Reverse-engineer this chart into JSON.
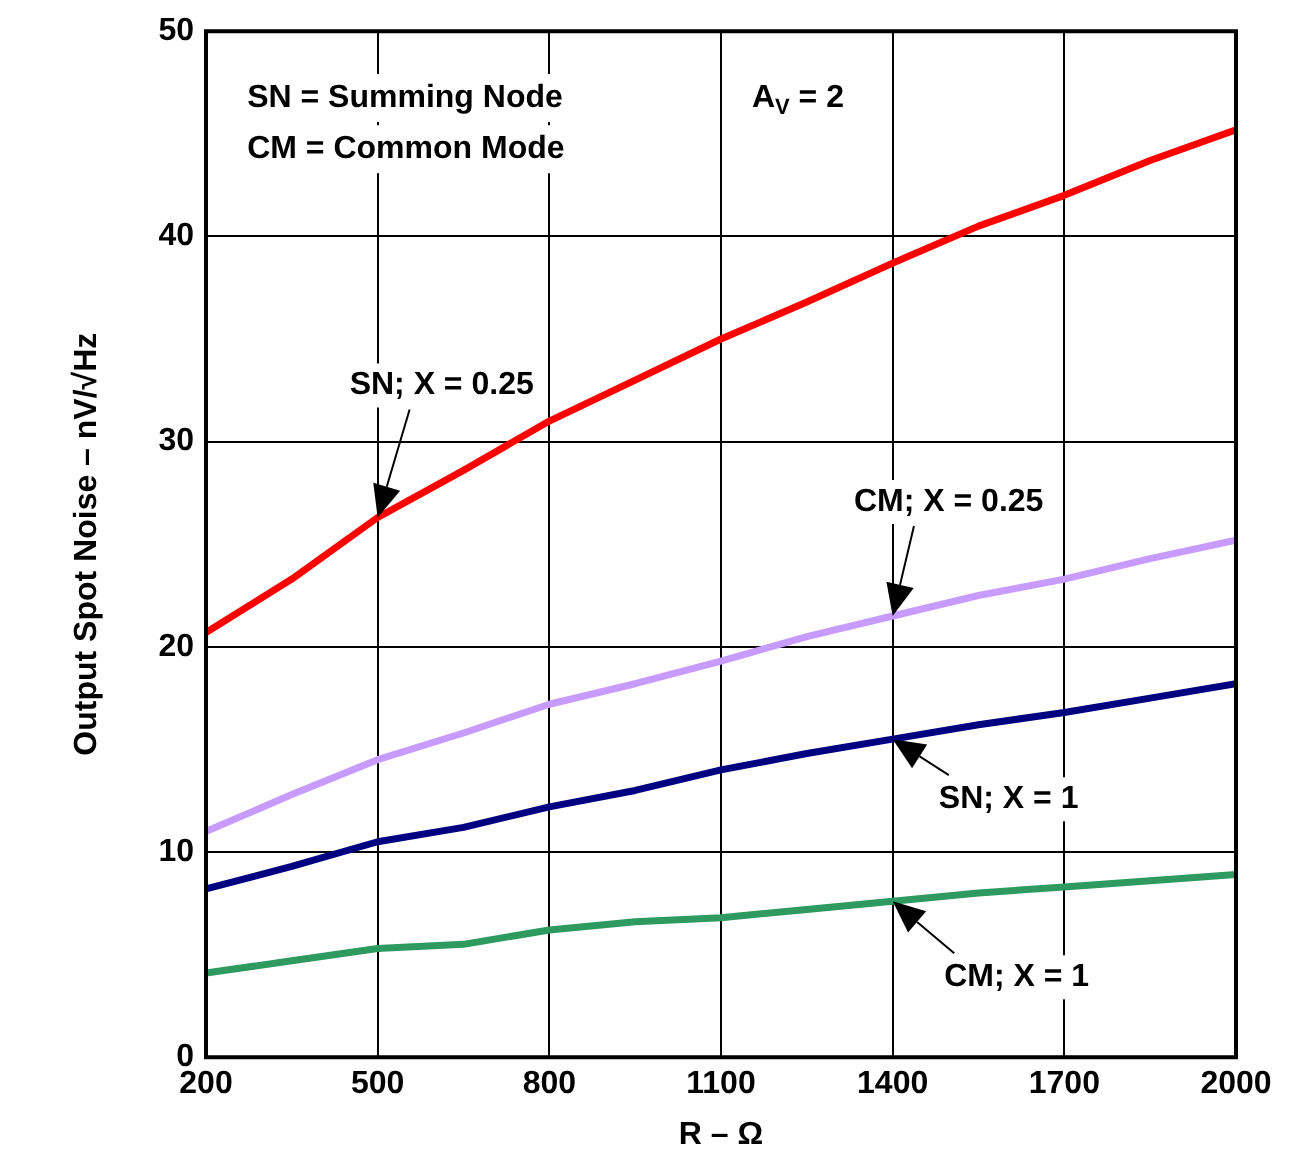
{
  "chart_data": {
    "type": "line",
    "xlabel": "R – Ω",
    "ylabel": "Output Spot Noise – nV/√Hz",
    "annotations": [
      "SN = Summing Node",
      "CM = Common Mode",
      "A$_{V}$ = 2"
    ],
    "x": [
      200,
      350,
      500,
      650,
      800,
      950,
      1100,
      1250,
      1400,
      1550,
      1700,
      1850,
      2000
    ],
    "series": [
      {
        "name": "SN; X = 0.25",
        "color": "#ff0000",
        "values": [
          20.7,
          23.3,
          26.3,
          28.6,
          31.0,
          33.0,
          35.0,
          36.8,
          38.7,
          40.5,
          42.0,
          43.7,
          45.2
        ]
      },
      {
        "name": "CM; X = 0.25",
        "color": "#c79bff",
        "values": [
          11.0,
          12.8,
          14.5,
          15.8,
          17.2,
          18.2,
          19.3,
          20.5,
          21.5,
          22.5,
          23.3,
          24.3,
          25.2
        ]
      },
      {
        "name": "SN; X = 1",
        "color": "#000080",
        "values": [
          8.2,
          9.3,
          10.5,
          11.2,
          12.2,
          13.0,
          14.0,
          14.8,
          15.5,
          16.2,
          16.8,
          17.5,
          18.2
        ]
      },
      {
        "name": "CM; X = 1",
        "color": "#2e9a60",
        "values": [
          4.1,
          4.7,
          5.3,
          5.5,
          6.2,
          6.6,
          6.8,
          7.2,
          7.6,
          8.0,
          8.3,
          8.6,
          8.9
        ]
      }
    ],
    "xlim": [
      200,
      2000
    ],
    "xticks": [
      200,
      500,
      800,
      1100,
      1400,
      1700,
      2000
    ],
    "ylim": [
      0,
      50
    ],
    "yticks": [
      0,
      10,
      20,
      30,
      40,
      50
    ],
    "grid": true,
    "legend": false,
    "marker": "none",
    "line_style": "solid"
  }
}
